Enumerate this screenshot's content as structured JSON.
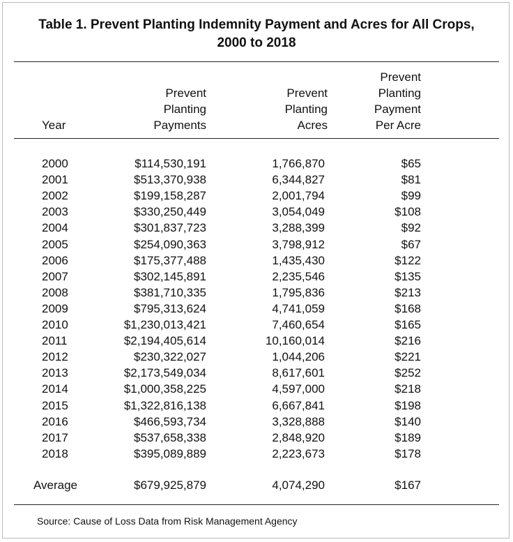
{
  "title_line1": "Table 1.  Prevent Planting Indemnity Payment and Acres for All Crops,",
  "title_line2": "2000 to 2018",
  "headers": {
    "year": "Year",
    "payments": [
      "Prevent",
      "Planting",
      "Payments"
    ],
    "acres": [
      "Prevent",
      "Planting",
      "Acres"
    ],
    "per_acre": [
      "Prevent",
      "Planting",
      "Payment",
      "Per Acre"
    ]
  },
  "rows": [
    {
      "year": "2000",
      "payments": "$114,530,191",
      "acres": "1,766,870",
      "per_acre": "$65"
    },
    {
      "year": "2001",
      "payments": "$513,370,938",
      "acres": "6,344,827",
      "per_acre": "$81"
    },
    {
      "year": "2002",
      "payments": "$199,158,287",
      "acres": "2,001,794",
      "per_acre": "$99"
    },
    {
      "year": "2003",
      "payments": "$330,250,449",
      "acres": "3,054,049",
      "per_acre": "$108"
    },
    {
      "year": "2004",
      "payments": "$301,837,723",
      "acres": "3,288,399",
      "per_acre": "$92"
    },
    {
      "year": "2005",
      "payments": "$254,090,363",
      "acres": "3,798,912",
      "per_acre": "$67"
    },
    {
      "year": "2006",
      "payments": "$175,377,488",
      "acres": "1,435,430",
      "per_acre": "$122"
    },
    {
      "year": "2007",
      "payments": "$302,145,891",
      "acres": "2,235,546",
      "per_acre": "$135"
    },
    {
      "year": "2008",
      "payments": "$381,710,335",
      "acres": "1,795,836",
      "per_acre": "$213"
    },
    {
      "year": "2009",
      "payments": "$795,313,624",
      "acres": "4,741,059",
      "per_acre": "$168"
    },
    {
      "year": "2010",
      "payments": "$1,230,013,421",
      "acres": "7,460,654",
      "per_acre": "$165"
    },
    {
      "year": "2011",
      "payments": "$2,194,405,614",
      "acres": "10,160,014",
      "per_acre": "$216"
    },
    {
      "year": "2012",
      "payments": "$230,322,027",
      "acres": "1,044,206",
      "per_acre": "$221"
    },
    {
      "year": "2013",
      "payments": "$2,173,549,034",
      "acres": "8,617,601",
      "per_acre": "$252"
    },
    {
      "year": "2014",
      "payments": "$1,000,358,225",
      "acres": "4,597,000",
      "per_acre": "$218"
    },
    {
      "year": "2015",
      "payments": "$1,322,816,138",
      "acres": "6,667,841",
      "per_acre": "$198"
    },
    {
      "year": "2016",
      "payments": "$466,593,734",
      "acres": "3,328,888",
      "per_acre": "$140"
    },
    {
      "year": "2017",
      "payments": "$537,658,338",
      "acres": "2,848,920",
      "per_acre": "$189"
    },
    {
      "year": "2018",
      "payments": "$395,089,889",
      "acres": "2,223,673",
      "per_acre": "$178"
    }
  ],
  "average": {
    "label": "Average",
    "payments": "$679,925,879",
    "acres": "4,074,290",
    "per_acre": "$167"
  },
  "source": "Source:  Cause of Loss Data from Risk Management Agency"
}
